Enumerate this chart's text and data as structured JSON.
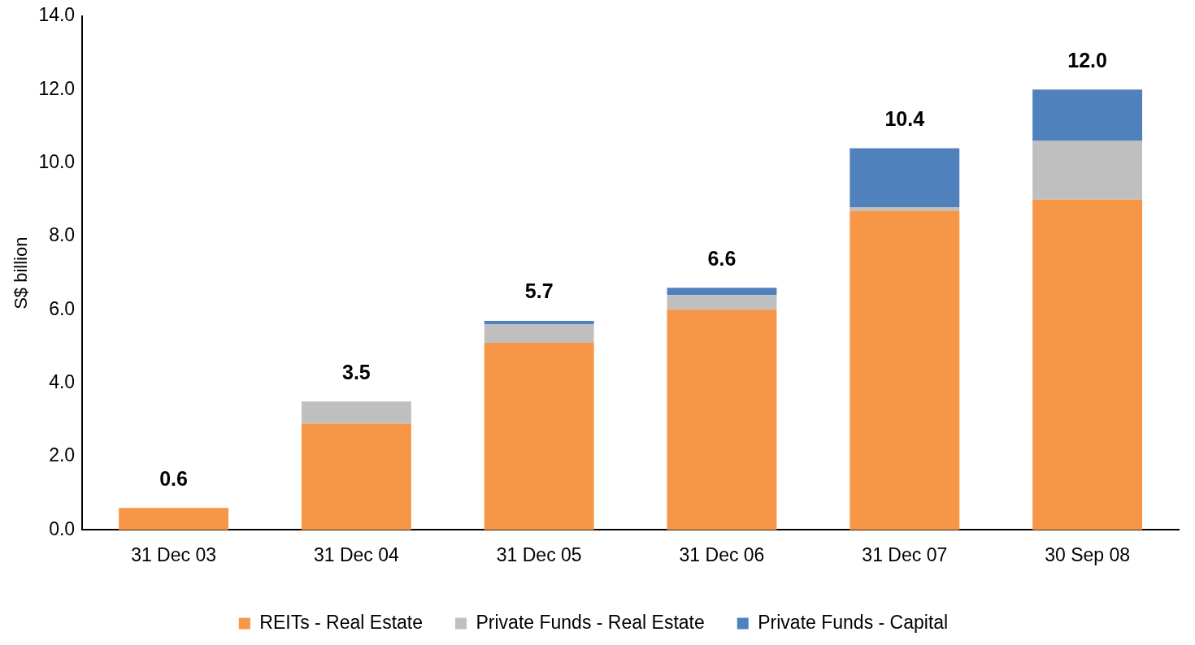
{
  "chart_data": {
    "type": "bar",
    "stacked": true,
    "ylabel": "S$ billion",
    "categories": [
      "31 Dec 03",
      "31 Dec 04",
      "31 Dec 05",
      "31 Dec 06",
      "31 Dec 07",
      "30 Sep 08"
    ],
    "series": [
      {
        "name": "REITs - Real Estate",
        "color": "#f79646",
        "values": [
          0.6,
          2.9,
          5.1,
          6.0,
          8.7,
          9.0
        ]
      },
      {
        "name": "Private Funds - Real Estate",
        "color": "#bfbfbf",
        "values": [
          null,
          0.6,
          0.5,
          0.4,
          0.1,
          1.6
        ]
      },
      {
        "name": "Private Funds - Capital",
        "color": "#4f81bd",
        "values": [
          null,
          null,
          0.1,
          0.2,
          1.6,
          1.4
        ]
      }
    ],
    "totals": [
      "0.6",
      "3.5",
      "5.7",
      "6.6",
      "10.4",
      "12.0"
    ],
    "ylim": [
      0,
      14
    ],
    "yticks": [
      {
        "value": 0,
        "label": "0.0"
      },
      {
        "value": 2,
        "label": "2.0"
      },
      {
        "value": 4,
        "label": "4.0"
      },
      {
        "value": 6,
        "label": "6.0"
      },
      {
        "value": 8,
        "label": "8.0"
      },
      {
        "value": 10,
        "label": "10.0"
      },
      {
        "value": 12,
        "label": "12.0"
      },
      {
        "value": 14,
        "label": "14.0"
      }
    ],
    "grid": false,
    "legend": "bottom"
  }
}
